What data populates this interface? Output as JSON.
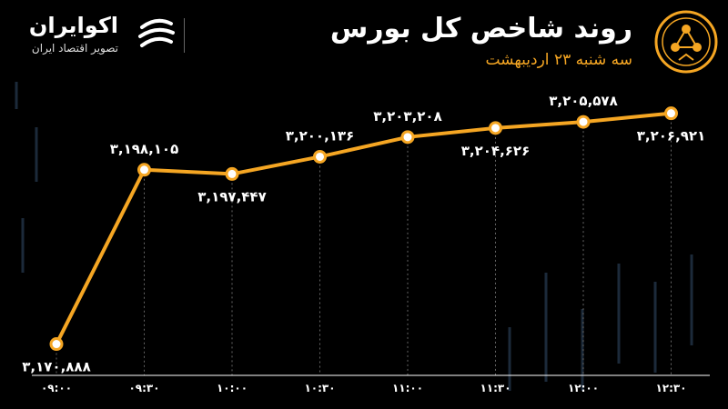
{
  "header": {
    "title": "روند شاخص کل بورس",
    "subtitle": "سه شنبه ۲۳ اردیبهشت"
  },
  "brand": {
    "name": "اکوایران",
    "tagline": "تصویر اقتصاد ایران"
  },
  "colors": {
    "background": "#000000",
    "line": "#f5a623",
    "text": "#ffffff",
    "grid": "#555555"
  },
  "chart_data": {
    "type": "line",
    "x": [
      "۰۹:۰۰",
      "۰۹:۳۰",
      "۱۰:۰۰",
      "۱۰:۳۰",
      "۱۱:۰۰",
      "۱۱:۳۰",
      "۱۲:۰۰",
      "۱۲:۳۰"
    ],
    "values": [
      3170888,
      3198105,
      3197447,
      3200136,
      3203208,
      3204626,
      3205578,
      3206921
    ],
    "labels": [
      "۳,۱۷۰,۸۸۸",
      "۳,۱۹۸,۱۰۵",
      "۳,۱۹۷,۴۴۷",
      "۳,۲۰۰,۱۳۶",
      "۳,۲۰۳,۲۰۸",
      "۳,۲۰۴,۶۲۶",
      "۳,۲۰۵,۵۷۸",
      "۳,۲۰۶,۹۲۱"
    ],
    "label_position": [
      "below",
      "above",
      "below",
      "above",
      "above",
      "below",
      "above",
      "below"
    ],
    "title": "روند شاخص کل بورس",
    "subtitle": "سه شنبه ۲۳ اردیبهشت",
    "ylim": [
      3166000,
      3209000
    ],
    "grid": "vertical-dashed"
  }
}
